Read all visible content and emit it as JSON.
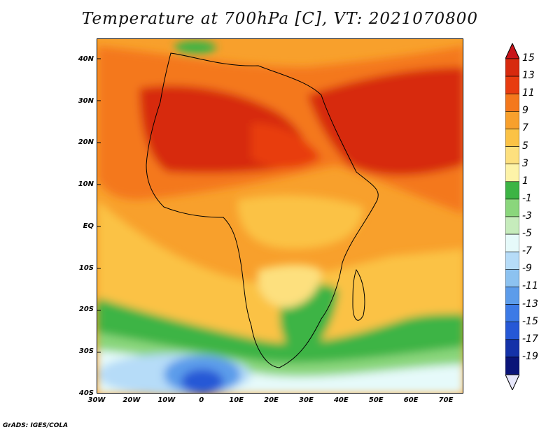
{
  "title": "Temperature at 700hPa [C], VT: 2021070800",
  "credit": "GrADS: IGES/COLA",
  "map": {
    "lat_labels": [
      "40N",
      "30N",
      "20N",
      "10N",
      "EQ",
      "10S",
      "20S",
      "30S",
      "40S"
    ],
    "lon_labels": [
      "30W",
      "20W",
      "10W",
      "0",
      "10E",
      "20E",
      "30E",
      "40E",
      "50E",
      "60E",
      "70E"
    ],
    "lat_range": [
      -40,
      45
    ],
    "lon_range": [
      -30,
      75
    ]
  },
  "colorbar": {
    "labels": [
      "15",
      "13",
      "11",
      "9",
      "7",
      "5",
      "3",
      "1",
      "-1",
      "-3",
      "-5",
      "-7",
      "-9",
      "-11",
      "-13",
      "-15",
      "-17",
      "-19"
    ],
    "colors": [
      "#d72a0e",
      "#e83c10",
      "#f4781c",
      "#f8a02c",
      "#fbc245",
      "#fde07e",
      "#fdf3a8",
      "#3cb444",
      "#8ad67c",
      "#c6ecbc",
      "#e6fafa",
      "#b6dcf8",
      "#8cc2f0",
      "#5c9cea",
      "#3c7ae6",
      "#2658d6",
      "#1432a8",
      "#0a1478"
    ],
    "over_color": "#c8141a",
    "under_color": "#e6e6fa"
  }
}
